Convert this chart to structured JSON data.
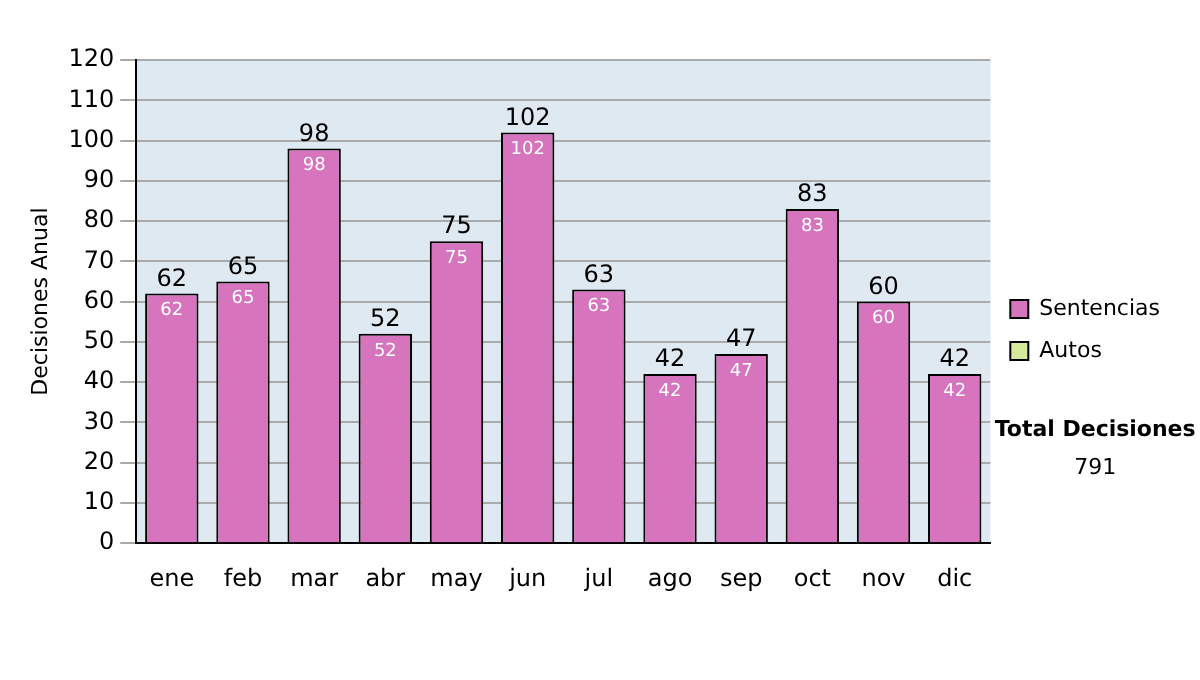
{
  "chart_data": {
    "type": "bar",
    "ylabel": "Decisiones Anual",
    "categories": [
      "ene",
      "feb",
      "mar",
      "abr",
      "may",
      "jun",
      "jul",
      "ago",
      "sep",
      "oct",
      "nov",
      "dic"
    ],
    "series": [
      {
        "name": "Sentencias",
        "color": "#d674bd",
        "values": [
          62,
          65,
          98,
          52,
          75,
          102,
          63,
          42,
          47,
          83,
          60,
          42
        ],
        "value_labels": [
          "62",
          "65",
          "98",
          "52",
          "75",
          "102",
          "63",
          "42",
          "47",
          "83",
          "60",
          "42"
        ]
      },
      {
        "name": "Autos",
        "color": "#d6ea9c",
        "values": [
          0,
          0,
          0,
          0,
          0,
          0,
          0,
          0,
          0,
          0,
          0,
          0
        ]
      }
    ],
    "stacked": true,
    "totals": [
      "62",
      "65",
      "98",
      "52",
      "75",
      "102",
      "63",
      "42",
      "47",
      "83",
      "60",
      "42"
    ],
    "ylim": [
      0,
      120
    ],
    "yticks": [
      0,
      10,
      20,
      30,
      40,
      50,
      60,
      70,
      80,
      90,
      100,
      110,
      120
    ],
    "grid": "y",
    "legend": "right",
    "annotations": [
      "Total Decisiones",
      "791"
    ]
  }
}
